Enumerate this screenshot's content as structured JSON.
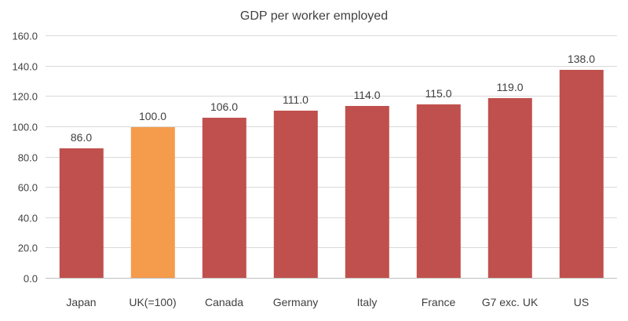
{
  "chart_data": {
    "type": "bar",
    "title": "GDP per worker employed",
    "categories": [
      "Japan",
      "UK(=100)",
      "Canada",
      "Germany",
      "Italy",
      "France",
      "G7 exc. UK",
      "US"
    ],
    "values": [
      86.0,
      100.0,
      106.0,
      111.0,
      114.0,
      115.0,
      119.0,
      138.0
    ],
    "value_labels": [
      "86.0",
      "100.0",
      "106.0",
      "111.0",
      "114.0",
      "115.0",
      "119.0",
      "138.0"
    ],
    "xlabel": "",
    "ylabel": "",
    "ylim": [
      0,
      160
    ],
    "ytick_step": 20,
    "ytick_labels": [
      "0.0",
      "20.0",
      "40.0",
      "60.0",
      "80.0",
      "100.0",
      "120.0",
      "140.0",
      "160.0"
    ],
    "grid": true,
    "legend": "none",
    "highlight_index": 1,
    "colors": {
      "bar": "#c0504d",
      "highlight": "#f59b4c",
      "gridline": "#d9d9d9",
      "axis": "#bfbfbf",
      "text": "#404040"
    }
  }
}
